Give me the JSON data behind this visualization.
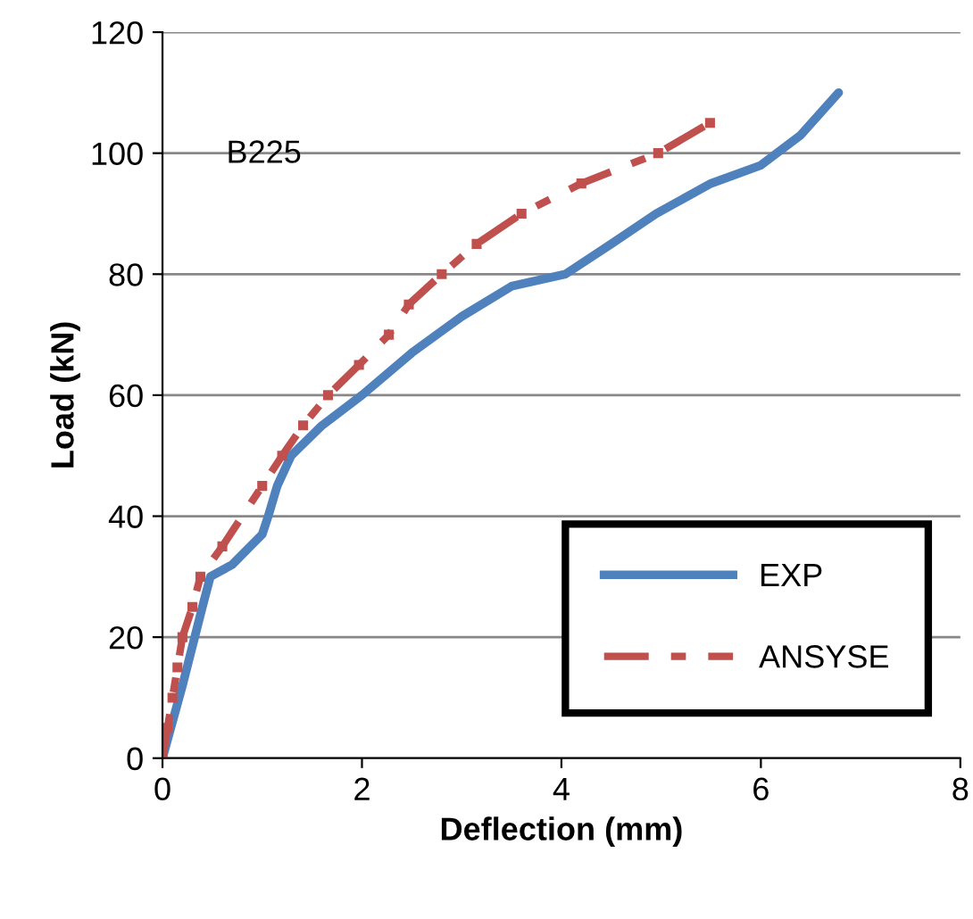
{
  "chart_data": {
    "type": "line",
    "xlabel": "Deflection (mm)",
    "ylabel": "Load (kN)",
    "annotations": [
      "B225"
    ],
    "xlim": [
      0,
      8
    ],
    "xticks": [
      0,
      2,
      4,
      6,
      8
    ],
    "ylim": [
      0,
      120
    ],
    "yticks": [
      0,
      20,
      40,
      60,
      80,
      100,
      120
    ],
    "grid": "y",
    "legend": "bottom right",
    "series": [
      {
        "name": "EXP",
        "color": "#4f81bd",
        "line_style": "solid",
        "marker": "none",
        "x": [
          0,
          0.2,
          0.4,
          0.48,
          0.7,
          0.88,
          1.0,
          1.06,
          1.15,
          1.29,
          1.6,
          2.0,
          2.5,
          3.0,
          3.5,
          4.04,
          4.5,
          4.95,
          5.5,
          6.0,
          6.4,
          6.78
        ],
        "values": [
          0,
          12,
          25,
          30,
          32,
          35,
          37,
          40,
          45,
          50,
          55,
          60,
          67,
          73,
          78,
          80,
          85,
          90,
          95,
          98,
          103,
          110
        ]
      },
      {
        "name": "ANSYSE",
        "color": "#c0504d",
        "line_style": "dashed",
        "marker": "square",
        "x": [
          0,
          0.05,
          0.1,
          0.15,
          0.2,
          0.3,
          0.38,
          0.6,
          1.0,
          1.2,
          1.41,
          1.66,
          1.97,
          2.27,
          2.47,
          2.8,
          3.15,
          3.6,
          4.2,
          4.97,
          5.49
        ],
        "values": [
          0,
          5,
          10,
          15,
          20,
          25,
          30,
          35,
          45,
          50,
          55,
          60,
          65,
          70,
          75,
          80,
          85,
          90,
          95,
          100,
          105
        ]
      }
    ]
  }
}
